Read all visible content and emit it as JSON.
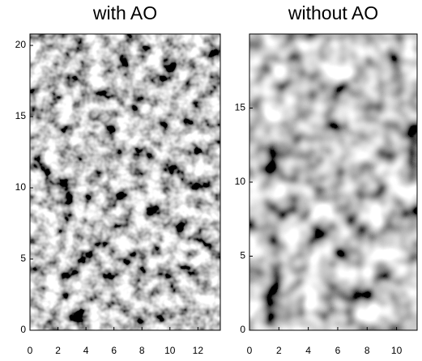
{
  "chart_data": [
    {
      "type": "image",
      "title": "with AO",
      "xlim": [
        0,
        13.6
      ],
      "ylim": [
        0,
        20.8
      ],
      "xticks": [
        0,
        2,
        4,
        6,
        8,
        10,
        12
      ],
      "yticks": [
        0,
        5,
        10,
        15,
        20
      ]
    },
    {
      "type": "image",
      "title": "without AO",
      "xlim": [
        0,
        11.4
      ],
      "ylim": [
        0,
        20
      ],
      "xticks": [
        0,
        2,
        4,
        6,
        8,
        10
      ],
      "yticks": [
        0,
        5,
        10,
        15
      ]
    }
  ]
}
